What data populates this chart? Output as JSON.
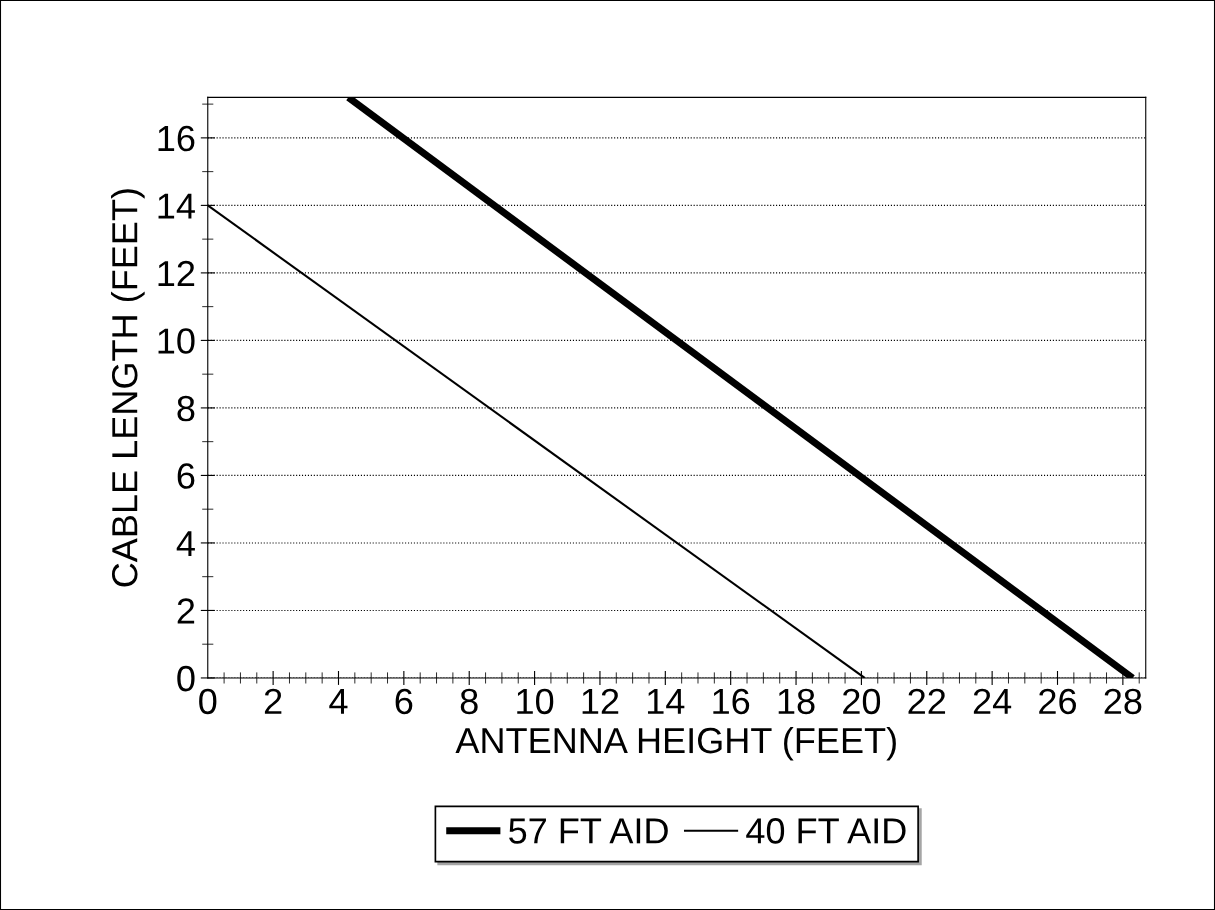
{
  "chart_data": {
    "type": "line",
    "xlabel": "ANTENNA HEIGHT (FEET)",
    "ylabel": "CABLE LENGTH (FEET)",
    "xlim": [
      0,
      28.7
    ],
    "xticks": [
      0,
      2,
      4,
      6,
      8,
      10,
      12,
      14,
      16,
      18,
      20,
      22,
      24,
      26,
      28
    ],
    "ylim": [
      0,
      17.2
    ],
    "yticks": [
      0,
      2,
      4,
      6,
      8,
      10,
      12,
      14,
      16
    ],
    "grid": "y",
    "legend": "bottom",
    "marker": "none",
    "line_style": "solid",
    "series": [
      {
        "name": "57 FT AID",
        "color": "#000000",
        "x": [
          4.3,
          28.3
        ],
        "values": [
          17.2,
          0
        ]
      },
      {
        "name": "40 FT AID",
        "color": "#000000",
        "x": [
          0,
          20.1
        ],
        "values": [
          14,
          0
        ]
      }
    ]
  }
}
